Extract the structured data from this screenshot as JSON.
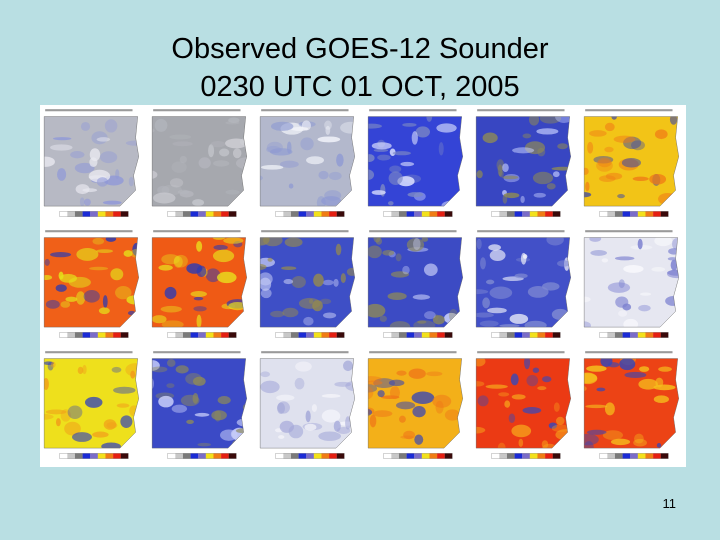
{
  "slide": {
    "title_line1": "Observed GOES-12 Sounder",
    "title_line2": "0230 UTC 01 OCT, 2005",
    "slide_number": "11",
    "background": "#b9dfe3"
  },
  "panels": [
    {
      "palette": "grey-blue-hint",
      "fill": "#b7b9c4",
      "accent": "#8f98d8",
      "cloud": "#e9e9f0"
    },
    {
      "palette": "grey",
      "fill": "#a6a8ae",
      "accent": "#b4b6bd",
      "cloud": "#cfd0d6"
    },
    {
      "palette": "light-blue",
      "fill": "#b3b8cc",
      "accent": "#8d99d3",
      "cloud": "#f3f4fa"
    },
    {
      "palette": "blue",
      "fill": "#3444d6",
      "accent": "#7d89c4",
      "cloud": "#dfe4ff"
    },
    {
      "palette": "blue-olive",
      "fill": "#3846c2",
      "accent": "#8e8a55",
      "cloud": "#c8d0ff"
    },
    {
      "palette": "yellow-orange",
      "fill": "#f2c417",
      "accent": "#f07a16",
      "cloud": "#2f3fb5"
    },
    {
      "palette": "orange-red",
      "fill": "#f06018",
      "accent": "#e4e21a",
      "cloud": "#2a3ab2"
    },
    {
      "palette": "orange-red",
      "fill": "#ef5a15",
      "accent": "#e9df1c",
      "cloud": "#2b3ab4"
    },
    {
      "palette": "blue-olive",
      "fill": "#3e4fc6",
      "accent": "#958a4e",
      "cloud": "#c7cdf5"
    },
    {
      "palette": "blue-olive",
      "fill": "#3c4bc4",
      "accent": "#8f8a56",
      "cloud": "#cfd5fb"
    },
    {
      "palette": "blue-white",
      "fill": "#4250c8",
      "accent": "#7f8ad2",
      "cloud": "#f2f3fb"
    },
    {
      "palette": "pale-white",
      "fill": "#e6e7f1",
      "accent": "#7b80d0",
      "cloud": "#f9f9fc"
    },
    {
      "palette": "yellow",
      "fill": "#eee01c",
      "accent": "#f19a1a",
      "cloud": "#3545b9"
    },
    {
      "palette": "blue-olive",
      "fill": "#3b4ac6",
      "accent": "#8d8a58",
      "cloud": "#c9cffa"
    },
    {
      "palette": "pale-white",
      "fill": "#dfe1ee",
      "accent": "#a2a6d8",
      "cloud": "#f6f6fb"
    },
    {
      "palette": "yellow-orange",
      "fill": "#f3b019",
      "accent": "#ef7718",
      "cloud": "#3444b8"
    },
    {
      "palette": "red-orange",
      "fill": "#eb3a14",
      "accent": "#f6a01b",
      "cloud": "#3848b8"
    },
    {
      "palette": "red-orange",
      "fill": "#ec4315",
      "accent": "#f5c01c",
      "cloud": "#3646b7"
    }
  ]
}
